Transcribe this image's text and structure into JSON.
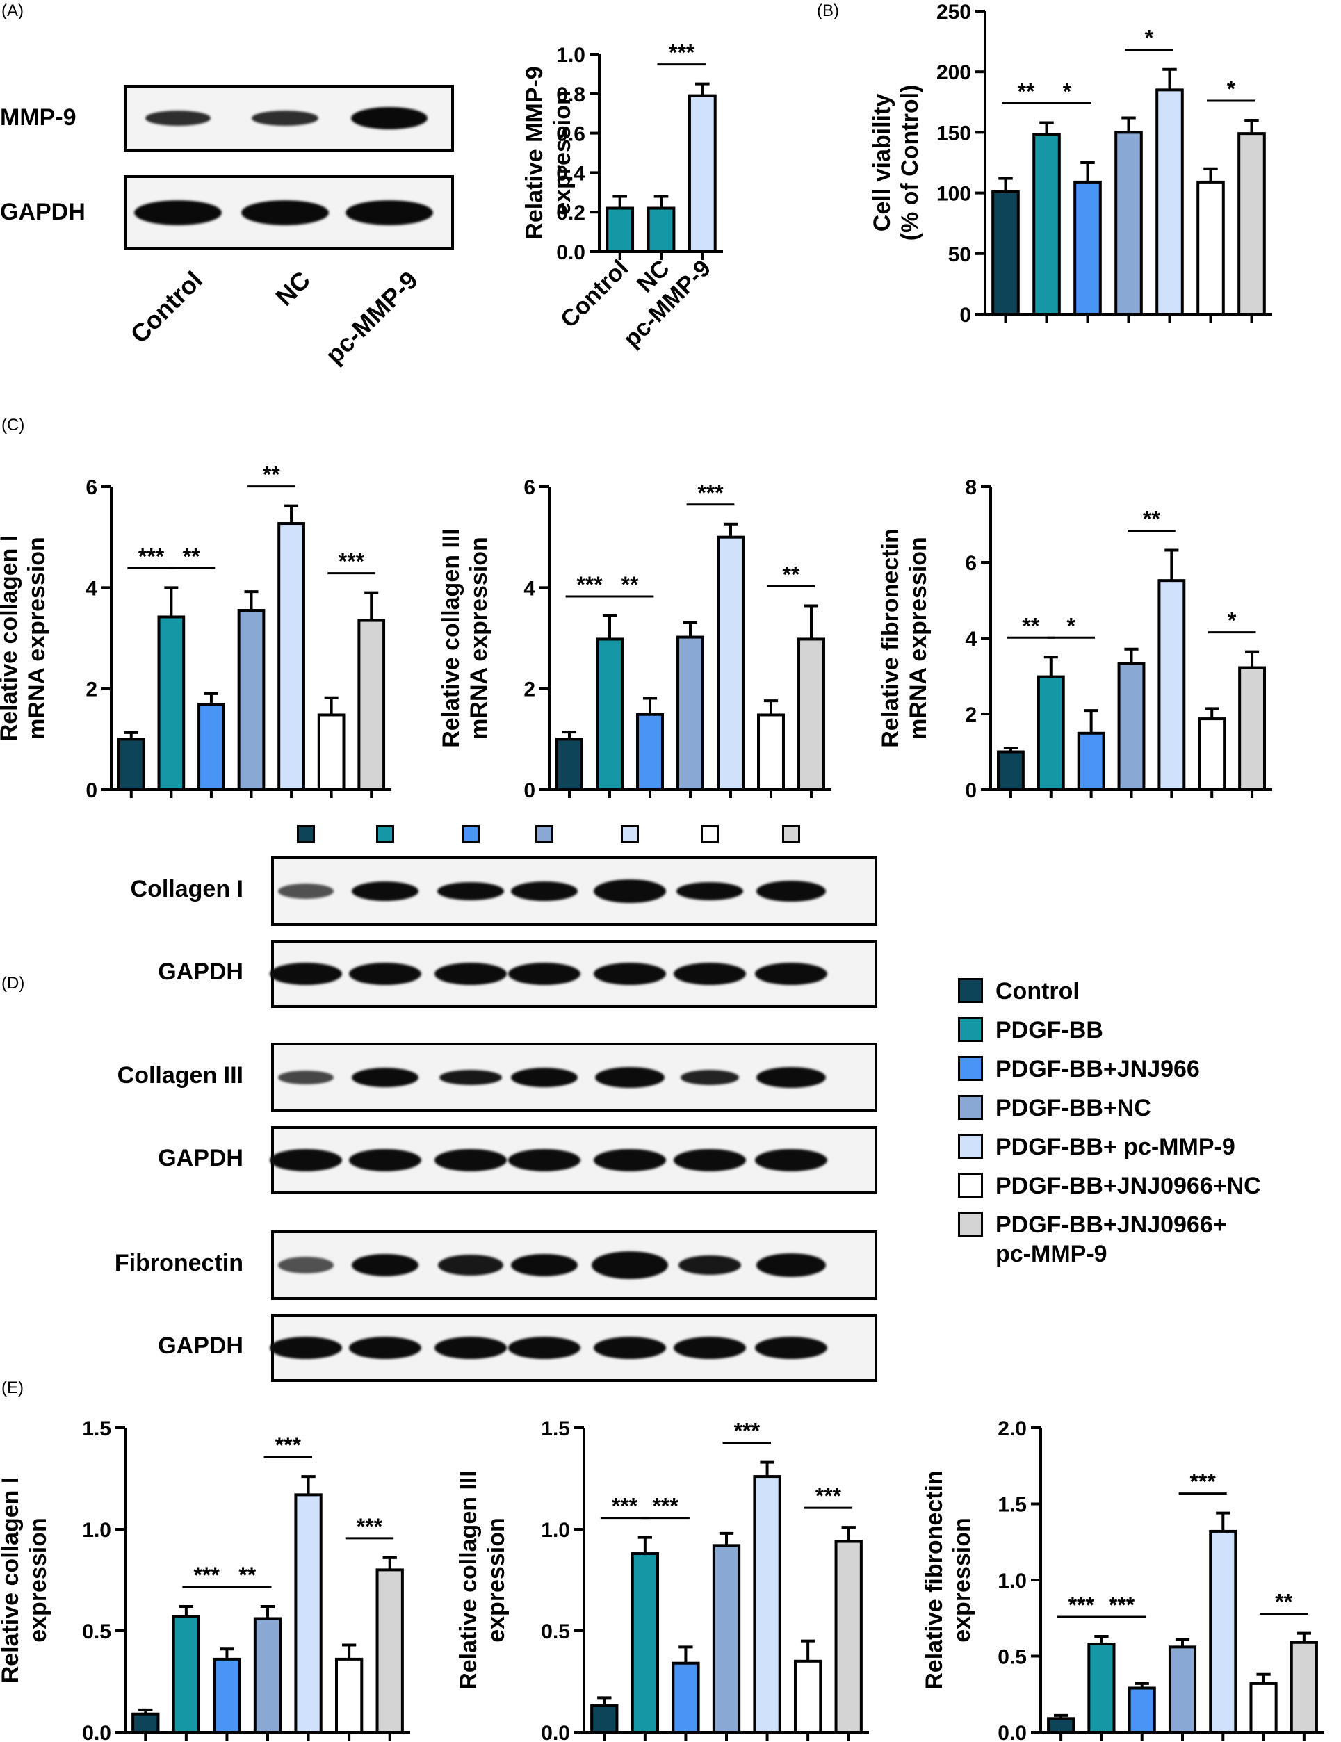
{
  "panels": {
    "a": "(A)",
    "b": "(B)",
    "c": "(C)",
    "d": "(D)",
    "e": "(E)"
  },
  "groups": [
    {
      "name": "Control",
      "color": "#0e4458"
    },
    {
      "name": "PDGF-BB",
      "color": "#1697a6"
    },
    {
      "name": "PDGF-BB+JNJ966",
      "color": "#4a94f5"
    },
    {
      "name": "PDGF-BB+NC",
      "color": "#8aa8d4"
    },
    {
      "name": "PDGF-BB+ pc-MMP-9",
      "color": "#cfe1fb"
    },
    {
      "name": "PDGF-BB+JNJ0966+NC",
      "color": "#ffffff"
    },
    {
      "name": "PDGF-BB+JNJ0966+\npc-MMP-9",
      "color": "#d4d4d4"
    }
  ],
  "blot_a": {
    "rows": [
      "MMP-9",
      "GAPDH"
    ],
    "lanes": [
      "Control",
      "NC",
      "pc-MMP-9"
    ]
  },
  "blot_d": {
    "rows": [
      "Collagen I",
      "GAPDH",
      "Collagen III",
      "GAPDH",
      "Fibronectin",
      "GAPDH"
    ]
  },
  "chart_data": [
    {
      "id": "A_mmp9",
      "type": "bar",
      "ylabel": "Relative MMP-9\nexpression",
      "categories": [
        "Control",
        "NC",
        "pc-MMP-9"
      ],
      "values": [
        0.22,
        0.22,
        0.79
      ],
      "errors": [
        0.06,
        0.06,
        0.06
      ],
      "colors": [
        "#1697a6",
        "#1697a6",
        "#cfe1fb"
      ],
      "ylim": [
        0,
        1.0
      ],
      "yticks": [
        "0.0",
        "0.2",
        "0.4",
        "0.6",
        "0.8",
        "1.0"
      ],
      "significance": [
        {
          "from": 1,
          "to": 2,
          "label": "***"
        }
      ]
    },
    {
      "id": "B_viability",
      "type": "bar",
      "ylabel": "Cell viability\n(% of Control)",
      "values": [
        101,
        148,
        109,
        150,
        185,
        109,
        149
      ],
      "errors": [
        11,
        10,
        16,
        12,
        17,
        11,
        11
      ],
      "ylim": [
        0,
        250
      ],
      "yticks": [
        "0",
        "50",
        "100",
        "150",
        "200",
        "250"
      ],
      "significance": [
        {
          "from": 0,
          "to": 1,
          "label": "**"
        },
        {
          "from": 1,
          "to": 2,
          "label": "*"
        },
        {
          "from": 3,
          "to": 4,
          "label": "*"
        },
        {
          "from": 5,
          "to": 6,
          "label": "*"
        }
      ]
    },
    {
      "id": "C_col1_mrna",
      "type": "bar",
      "ylabel": "Relative collagen I\nmRNA expression",
      "values": [
        1.0,
        3.42,
        1.69,
        3.55,
        5.27,
        1.48,
        3.35
      ],
      "errors": [
        0.13,
        0.58,
        0.21,
        0.37,
        0.35,
        0.34,
        0.55
      ],
      "ylim": [
        0,
        6
      ],
      "yticks": [
        "0",
        "2",
        "4",
        "6"
      ],
      "significance": [
        {
          "from": 0,
          "to": 1,
          "label": "***"
        },
        {
          "from": 1,
          "to": 2,
          "label": "**"
        },
        {
          "from": 3,
          "to": 4,
          "label": "**"
        },
        {
          "from": 5,
          "to": 6,
          "label": "***"
        }
      ]
    },
    {
      "id": "C_col3_mrna",
      "type": "bar",
      "ylabel": "Relative collagen III\nmRNA expression",
      "values": [
        1.0,
        2.98,
        1.49,
        3.02,
        5.0,
        1.48,
        2.98
      ],
      "errors": [
        0.14,
        0.46,
        0.32,
        0.29,
        0.26,
        0.28,
        0.66
      ],
      "ylim": [
        0,
        6
      ],
      "yticks": [
        "0",
        "2",
        "4",
        "6"
      ],
      "significance": [
        {
          "from": 0,
          "to": 1,
          "label": "***"
        },
        {
          "from": 1,
          "to": 2,
          "label": "**"
        },
        {
          "from": 3,
          "to": 4,
          "label": "***"
        },
        {
          "from": 5,
          "to": 6,
          "label": "**"
        }
      ]
    },
    {
      "id": "C_fn_mrna",
      "type": "bar",
      "ylabel": "Relative fibronectin\nmRNA expression",
      "values": [
        1.0,
        2.98,
        1.49,
        3.33,
        5.52,
        1.87,
        3.22
      ],
      "errors": [
        0.1,
        0.52,
        0.6,
        0.38,
        0.8,
        0.27,
        0.42
      ],
      "ylim": [
        0,
        8
      ],
      "yticks": [
        "0",
        "2",
        "4",
        "6",
        "8"
      ],
      "significance": [
        {
          "from": 0,
          "to": 1,
          "label": "**"
        },
        {
          "from": 1,
          "to": 2,
          "label": "*"
        },
        {
          "from": 3,
          "to": 4,
          "label": "**"
        },
        {
          "from": 5,
          "to": 6,
          "label": "*"
        }
      ]
    },
    {
      "id": "E_col1",
      "type": "bar",
      "ylabel": "Relative collagen I\nexpression",
      "values": [
        0.09,
        0.57,
        0.36,
        0.56,
        1.17,
        0.36,
        0.8
      ],
      "errors": [
        0.02,
        0.05,
        0.05,
        0.06,
        0.09,
        0.07,
        0.06
      ],
      "ylim": [
        0,
        1.5
      ],
      "yticks": [
        "0.0",
        "0.5",
        "1.0",
        "1.5"
      ],
      "significance": [
        {
          "from": 1,
          "to": 2,
          "label": "***"
        },
        {
          "from": 2,
          "to": 3,
          "label": "**"
        },
        {
          "from": 3,
          "to": 4,
          "label": "***"
        },
        {
          "from": 5,
          "to": 6,
          "label": "***"
        }
      ]
    },
    {
      "id": "E_col3",
      "type": "bar",
      "ylabel": "Relative collagen III\nexpression",
      "values": [
        0.13,
        0.88,
        0.34,
        0.92,
        1.26,
        0.35,
        0.94
      ],
      "errors": [
        0.04,
        0.08,
        0.08,
        0.06,
        0.07,
        0.1,
        0.07
      ],
      "ylim": [
        0,
        1.5
      ],
      "yticks": [
        "0.0",
        "0.5",
        "1.0",
        "1.5"
      ],
      "significance": [
        {
          "from": 0,
          "to": 1,
          "label": "***"
        },
        {
          "from": 1,
          "to": 2,
          "label": "***"
        },
        {
          "from": 3,
          "to": 4,
          "label": "***"
        },
        {
          "from": 5,
          "to": 6,
          "label": "***"
        }
      ]
    },
    {
      "id": "E_fn",
      "type": "bar",
      "ylabel": "Relative fibronectin\nexpression",
      "values": [
        0.09,
        0.58,
        0.29,
        0.56,
        1.32,
        0.32,
        0.59
      ],
      "errors": [
        0.02,
        0.05,
        0.03,
        0.05,
        0.12,
        0.06,
        0.06
      ],
      "ylim": [
        0,
        2.0
      ],
      "yticks": [
        "0.0",
        "0.5",
        "1.0",
        "1.5",
        "2.0"
      ],
      "significance": [
        {
          "from": 0,
          "to": 1,
          "label": "***"
        },
        {
          "from": 1,
          "to": 2,
          "label": "***"
        },
        {
          "from": 3,
          "to": 4,
          "label": "***"
        },
        {
          "from": 5,
          "to": 6,
          "label": "**"
        }
      ]
    }
  ]
}
